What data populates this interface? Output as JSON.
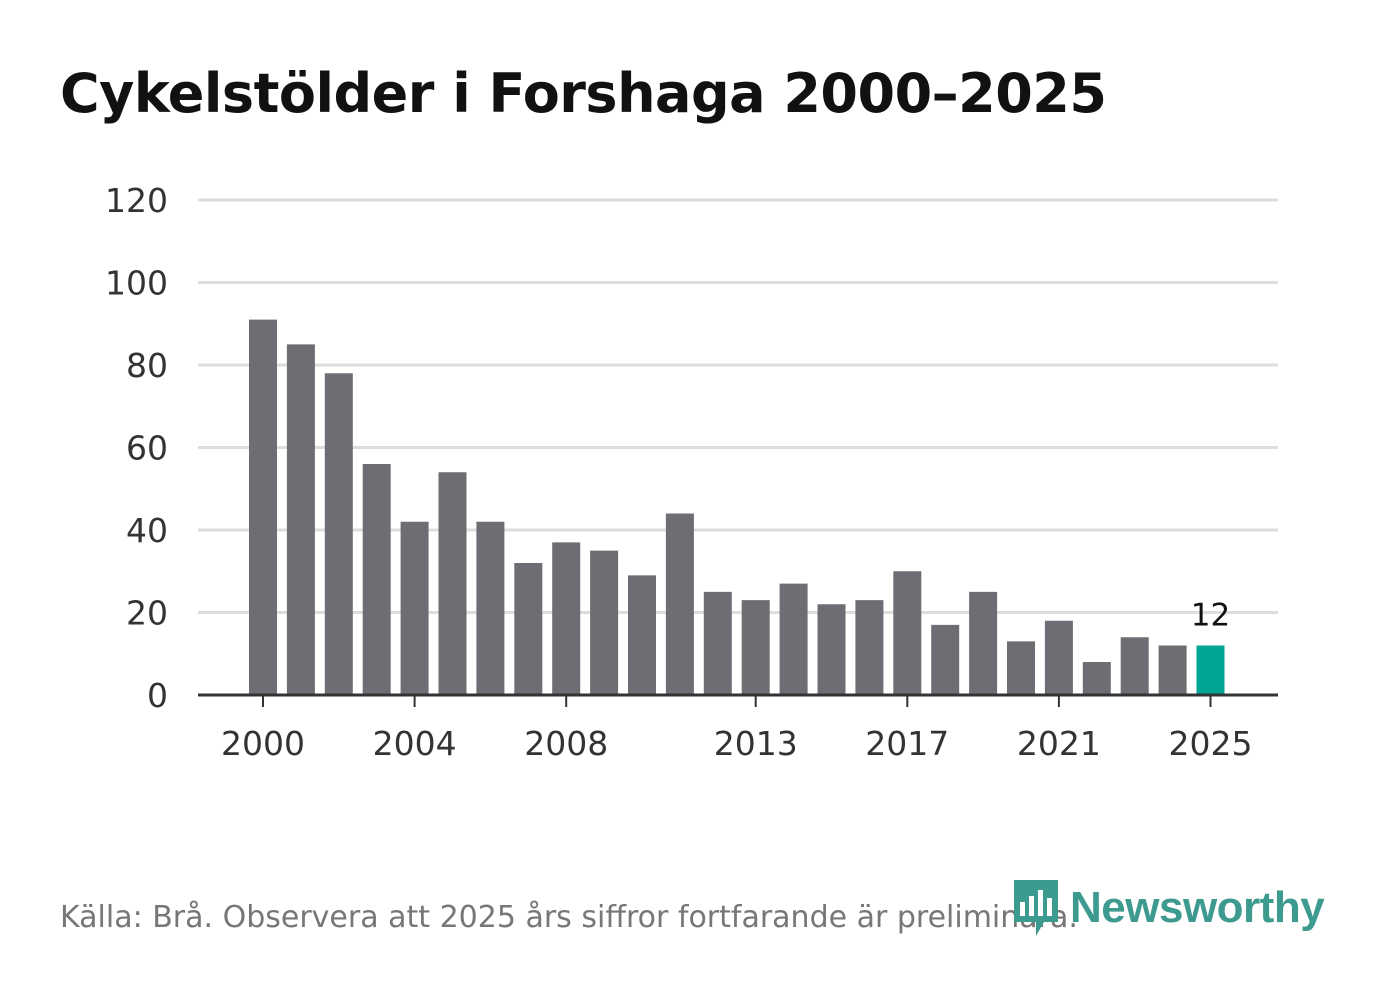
{
  "title": "Cykelstölder i Forshaga 2000–2025",
  "source": "Källa: Brå. Observera att 2025 års siffror fortfarande är preliminära.",
  "logo": {
    "text": "Newsworthy",
    "icon": "newsworthy-logo-icon",
    "color": "#3d9a8f"
  },
  "colors": {
    "bar": "#6e6d73",
    "highlight": "#00a596",
    "grid": "#dddddd",
    "axis": "#333333"
  },
  "chart_data": {
    "type": "bar",
    "title": "Cykelstölder i Forshaga 2000–2025",
    "xlabel": "",
    "ylabel": "",
    "categories": [
      "2000",
      "2001",
      "2002",
      "2003",
      "2004",
      "2005",
      "2006",
      "2007",
      "2008",
      "2009",
      "2010",
      "2011",
      "2012",
      "2013",
      "2014",
      "2015",
      "2016",
      "2017",
      "2018",
      "2019",
      "2020",
      "2021",
      "2022",
      "2023",
      "2024",
      "2025"
    ],
    "values": [
      91,
      85,
      78,
      56,
      42,
      54,
      42,
      32,
      37,
      35,
      29,
      44,
      25,
      23,
      27,
      22,
      23,
      30,
      17,
      25,
      13,
      18,
      8,
      14,
      12,
      12
    ],
    "ylim": [
      0,
      120
    ],
    "yticks": [
      0,
      20,
      40,
      60,
      80,
      100,
      120
    ],
    "xtick_labels": [
      "2000",
      "2004",
      "2008",
      "2013",
      "2017",
      "2021",
      "2025"
    ],
    "highlight_category": "2025",
    "annotations": [
      {
        "category": "2025",
        "text": "12"
      }
    ],
    "grid": true
  }
}
